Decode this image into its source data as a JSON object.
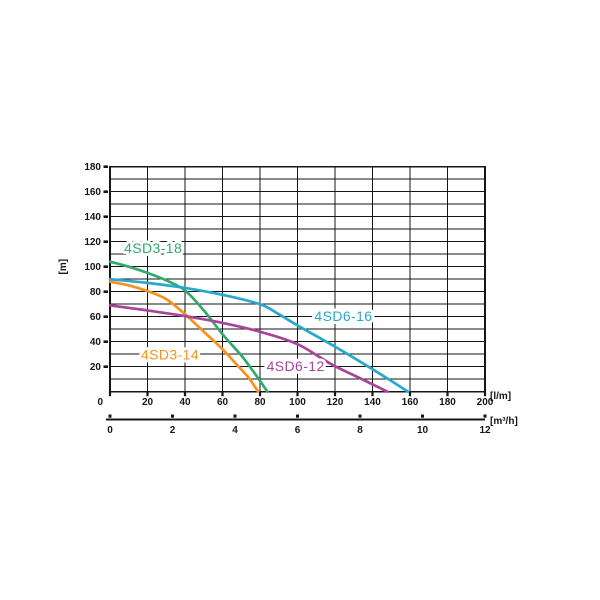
{
  "chart_data": {
    "type": "line",
    "description": "Pump head-flow performance curves",
    "ylabel": "[m]",
    "xlabel": "[l/m]",
    "x2label": "[m³/h]",
    "xlim": [
      0,
      200
    ],
    "ylim": [
      0,
      180
    ],
    "x2lim": [
      0,
      12
    ],
    "grid": {
      "x_step": 20,
      "y_step": 10
    },
    "x_ticks": [
      0,
      20,
      40,
      60,
      80,
      100,
      120,
      140,
      160,
      180,
      200
    ],
    "y_ticks": [
      20,
      40,
      60,
      80,
      100,
      120,
      140,
      160,
      180
    ],
    "x2_ticks": [
      0,
      2,
      4,
      6,
      8,
      10,
      12
    ],
    "origin_label": "0",
    "axis_color": "#161616",
    "background": "#ffffff",
    "series": [
      {
        "name": "4SD3-18",
        "color": "#31aa6e",
        "label_at": [
          23,
          114.5
        ],
        "points": [
          [
            0,
            104
          ],
          [
            10,
            100
          ],
          [
            20,
            95
          ],
          [
            30,
            89
          ],
          [
            40,
            81
          ],
          [
            50,
            65
          ],
          [
            60,
            46
          ],
          [
            70,
            29
          ],
          [
            77,
            15
          ],
          [
            84,
            0
          ]
        ]
      },
      {
        "name": "4SD3-14",
        "color": "#f6921e",
        "label_at": [
          32,
          29.5
        ],
        "points": [
          [
            0,
            88
          ],
          [
            10,
            85
          ],
          [
            20,
            80.5
          ],
          [
            30,
            74
          ],
          [
            40,
            62
          ],
          [
            50,
            48
          ],
          [
            60,
            34
          ],
          [
            68,
            21
          ],
          [
            74,
            11
          ],
          [
            79,
            0
          ]
        ]
      },
      {
        "name": "4SD6-16",
        "color": "#29a8ce",
        "label_at": [
          124.5,
          60
        ],
        "points": [
          [
            0,
            90
          ],
          [
            20,
            87
          ],
          [
            40,
            83
          ],
          [
            60,
            77.5
          ],
          [
            80,
            70
          ],
          [
            90,
            62
          ],
          [
            100,
            53
          ],
          [
            120,
            36
          ],
          [
            140,
            18
          ],
          [
            159,
            0
          ]
        ]
      },
      {
        "name": "4SD6-12",
        "color": "#a8449a",
        "label_at": [
          99,
          20
        ],
        "points": [
          [
            0,
            69
          ],
          [
            20,
            65
          ],
          [
            40,
            60.5
          ],
          [
            60,
            55
          ],
          [
            80,
            48
          ],
          [
            100,
            38
          ],
          [
            118,
            22
          ],
          [
            133,
            11
          ],
          [
            148,
            0
          ]
        ]
      }
    ]
  }
}
